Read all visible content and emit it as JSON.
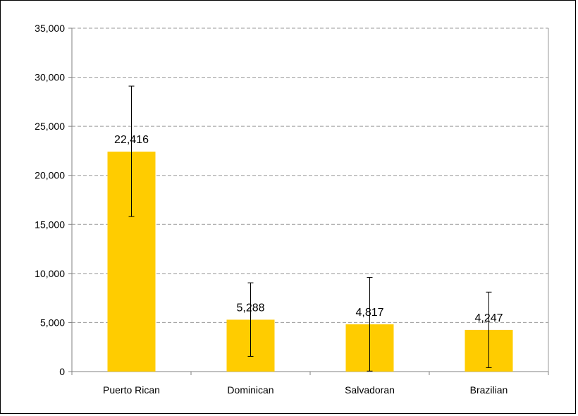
{
  "chart_data": {
    "type": "bar",
    "title": "",
    "xlabel": "",
    "ylabel": "",
    "categories": [
      "Puerto Rican",
      "Dominican",
      "Salvadoran",
      "Brazilian"
    ],
    "values": [
      22416,
      5288,
      4817,
      4247
    ],
    "value_labels": [
      "22,416",
      "5,288",
      "4,817",
      "4,247"
    ],
    "error_bars": [
      {
        "low": 15800,
        "high": 29100
      },
      {
        "low": 1550,
        "high": 9050
      },
      {
        "low": 50,
        "high": 9600
      },
      {
        "low": 400,
        "high": 8100
      }
    ],
    "ylim": [
      0,
      35000
    ],
    "yticks": [
      0,
      5000,
      10000,
      15000,
      20000,
      25000,
      30000,
      35000
    ],
    "ytick_labels": [
      "0",
      "5,000",
      "10,000",
      "15,000",
      "20,000",
      "25,000",
      "30,000",
      "35,000"
    ],
    "grid": "horizontal-dashed",
    "legend": "none",
    "colors": {
      "bar": "#FFCC00",
      "grid": "#999999",
      "axis": "#808080",
      "error": "#000000"
    }
  }
}
